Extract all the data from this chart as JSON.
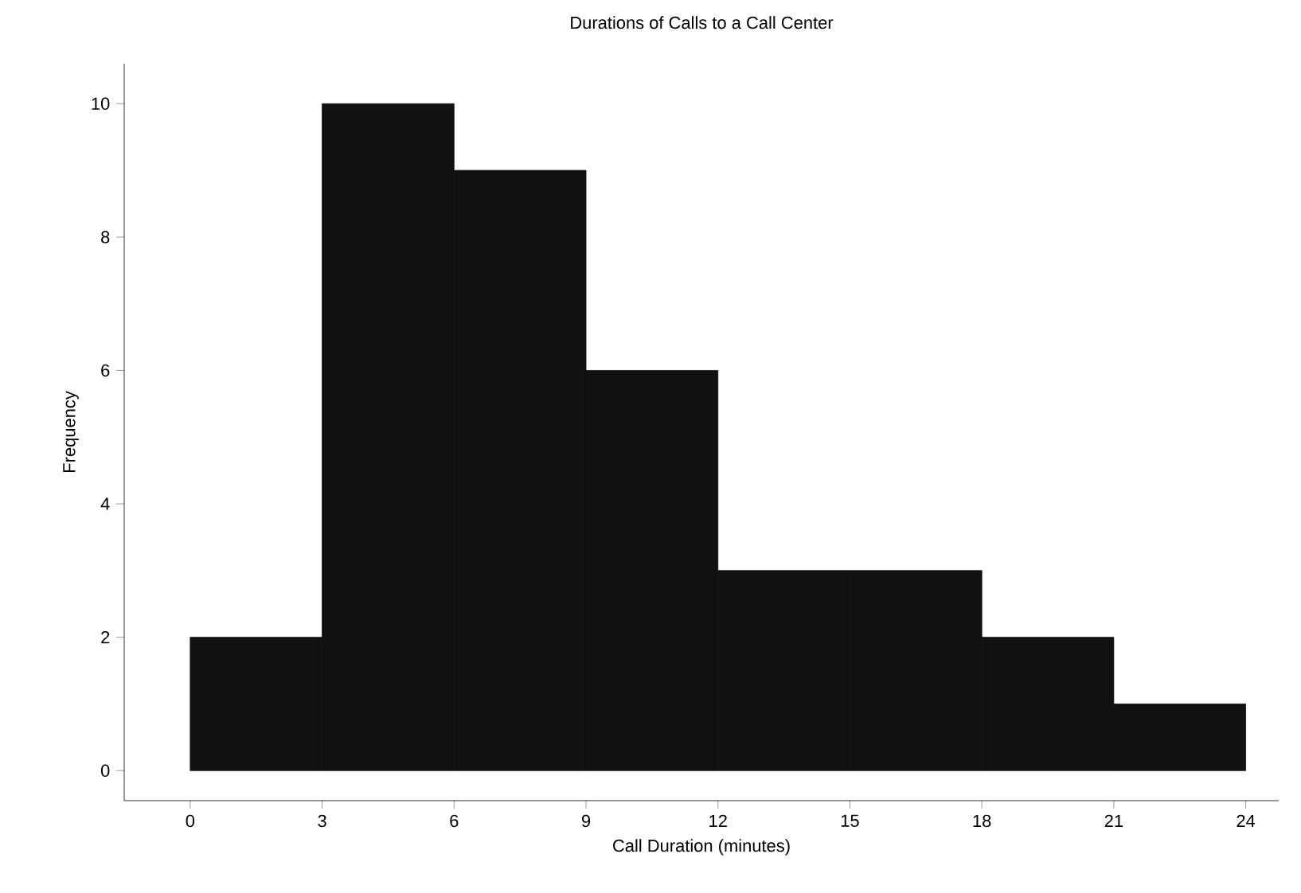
{
  "chart_data": {
    "type": "histogram",
    "title": "Durations of Calls to a Call Center",
    "xlabel": "Call Duration (minutes)",
    "ylabel": "Frequency",
    "bins": [
      0,
      3,
      6,
      9,
      12,
      15,
      18,
      21,
      24
    ],
    "values": [
      2,
      10,
      9,
      6,
      3,
      3,
      2,
      1
    ],
    "color": "#111111",
    "xlim": [
      -1.5,
      24.75
    ],
    "ylim": [
      -0.45,
      10.6
    ],
    "xticks": [
      0,
      3,
      6,
      9,
      12,
      15,
      18,
      21,
      24
    ],
    "yticks": [
      0,
      2,
      4,
      6,
      8,
      10
    ]
  }
}
